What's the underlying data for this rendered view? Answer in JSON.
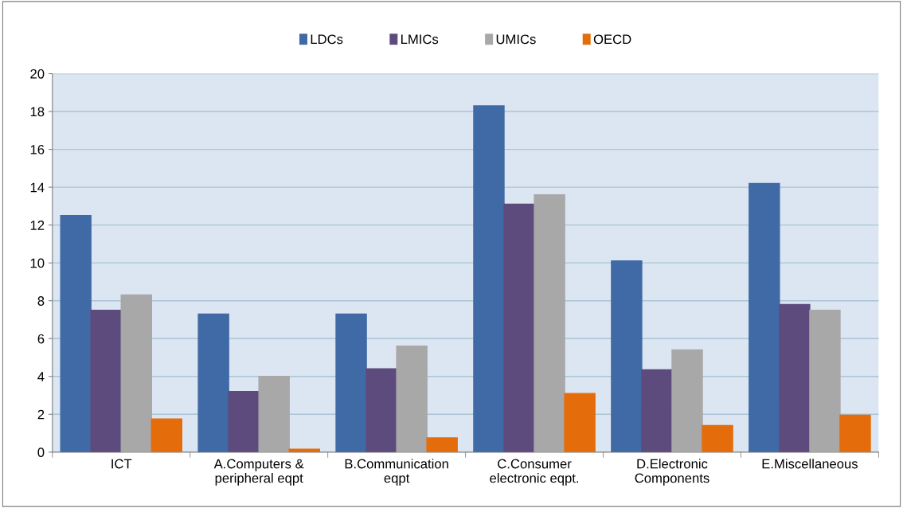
{
  "chart_data": {
    "type": "bar",
    "categories": [
      "ICT",
      "A.Computers &\nperipheral eqpt",
      "B.Communication\neqpt",
      "C.Consumer\nelectronic eqpt.",
      "D.Electronic\nComponents",
      "E.Miscellaneous"
    ],
    "series": [
      {
        "name": "LDCs",
        "color": "#3f6aa6",
        "values": [
          12.5,
          7.3,
          7.3,
          18.3,
          10.1,
          14.2
        ]
      },
      {
        "name": "LMICs",
        "color": "#5e4b7e",
        "values": [
          7.5,
          3.2,
          4.4,
          13.1,
          4.35,
          7.8
        ]
      },
      {
        "name": "UMICs",
        "color": "#a8a8a8",
        "values": [
          8.3,
          4.0,
          5.6,
          13.6,
          5.4,
          7.5
        ]
      },
      {
        "name": "OECD",
        "color": "#e46c0a",
        "values": [
          1.75,
          0.15,
          0.75,
          3.1,
          1.4,
          1.95
        ]
      }
    ],
    "ylim": [
      0,
      20
    ],
    "yticks": [
      0,
      2,
      4,
      6,
      8,
      10,
      12,
      14,
      16,
      18,
      20
    ],
    "grid": "y",
    "legend": "top"
  }
}
